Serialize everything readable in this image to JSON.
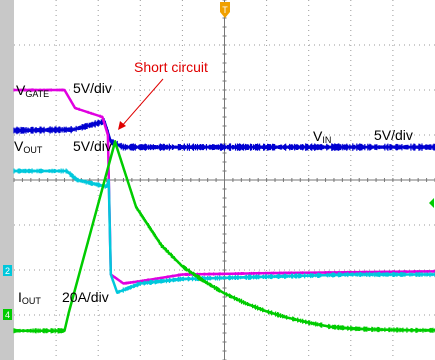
{
  "colors": {
    "background": "#ffffff",
    "grid": "#9a9a9a",
    "left_strip": "#c8c8c8",
    "vgate": "#e000e0",
    "vout": "#00c8dc",
    "vin": "#0000d0",
    "iout": "#00cc00",
    "trigger": "#f0a000",
    "annotation": "#e00000"
  },
  "labels": {
    "vgate_main": "V",
    "vgate_sub": "GATE",
    "vgate_scale": "5V/div",
    "vout_main": "V",
    "vout_sub": "OUT",
    "vout_scale": "5V/div",
    "vin_main": "V",
    "vin_sub": "IN",
    "vin_scale": "5V/div",
    "iout_main": "I",
    "iout_sub": "OUT",
    "iout_scale": "20A/div",
    "annotation": "Short circuit",
    "trigger_marker": "T",
    "ch2_marker": "2",
    "ch4_marker": "4"
  },
  "chart_data": {
    "type": "line",
    "title": "",
    "grid": true,
    "x_divisions": 10,
    "y_divisions": 8,
    "x_range_div": [
      0,
      10
    ],
    "y_range_div": [
      -4,
      4
    ],
    "annotation": {
      "text": "Short circuit",
      "at_x_div": 2.15
    },
    "series": [
      {
        "key": "vin",
        "name": "VIN",
        "color": "#0000d0",
        "noise_div": 0.07,
        "x": [
          0.0,
          1.4,
          2.15,
          2.3,
          2.6,
          10.0
        ],
        "y": [
          1.1,
          1.12,
          1.3,
          0.85,
          0.73,
          0.73
        ]
      },
      {
        "key": "vgate",
        "name": "VGATE",
        "color": "#e000e0",
        "noise_div": 0.03,
        "x": [
          0.0,
          1.2,
          1.45,
          2.1,
          2.23,
          2.3,
          2.6,
          3.0,
          4.0,
          6.0,
          8.0,
          10.0
        ],
        "y": [
          2.0,
          2.0,
          1.6,
          1.4,
          1.0,
          -2.1,
          -2.3,
          -2.25,
          -2.1,
          -2.07,
          -2.05,
          -2.03
        ]
      },
      {
        "key": "vout",
        "name": "VOUT",
        "color": "#00c8dc",
        "noise_div": 0.05,
        "x": [
          0.0,
          1.25,
          1.5,
          2.2,
          2.25,
          2.3,
          2.45,
          3.0,
          4.0,
          6.0,
          8.0,
          10.0
        ],
        "y": [
          0.2,
          0.2,
          0.0,
          -0.15,
          0.0,
          -2.1,
          -2.5,
          -2.3,
          -2.2,
          -2.15,
          -2.1,
          -2.1
        ]
      },
      {
        "key": "iout",
        "name": "IOUT",
        "color": "#00cc00",
        "noise_div": 0.05,
        "x": [
          0.0,
          1.2,
          1.3,
          2.4,
          2.9,
          3.5,
          4.0,
          4.5,
          5.0,
          5.5,
          6.0,
          6.5,
          7.0,
          7.5,
          8.0,
          8.5,
          9.0,
          9.5,
          10.0
        ],
        "y": [
          -3.35,
          -3.35,
          -2.95,
          0.85,
          -0.6,
          -1.45,
          -1.92,
          -2.24,
          -2.52,
          -2.74,
          -2.92,
          -3.06,
          -3.17,
          -3.26,
          -3.3,
          -3.32,
          -3.33,
          -3.34,
          -3.34
        ]
      }
    ]
  }
}
